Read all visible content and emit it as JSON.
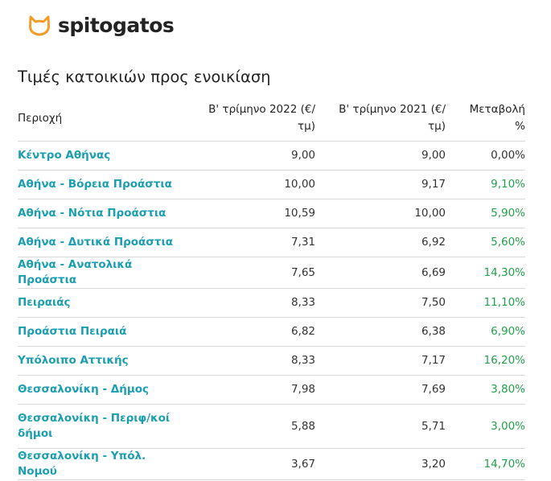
{
  "brand": {
    "name": "spitogatos",
    "icon": "cat-logo-icon",
    "icon_color": "#f39c28"
  },
  "page_title": "Τιμές κατοικιών προς ενοικίαση",
  "table": {
    "headers": {
      "area": "Περιοχή",
      "q2_2022_line1": "Β' τρίμηνο 2022 (€/",
      "q2_2022_line2": "τμ)",
      "q2_2021_line1": "Β' τρίμηνο 2021 (€/",
      "q2_2021_line2": "τμ)",
      "change_line1": "Μεταβολή",
      "change_line2": "%"
    },
    "rows": [
      {
        "area": "Κέντρο Αθήνας",
        "q2_2022": "9,00",
        "q2_2021": "9,00",
        "change": "0,00%"
      },
      {
        "area": "Αθήνα - Βόρεια Προάστια",
        "q2_2022": "10,00",
        "q2_2021": "9,17",
        "change": "9,10%"
      },
      {
        "area": "Αθήνα - Νότια Προάστια",
        "q2_2022": "10,59",
        "q2_2021": "10,00",
        "change": "5,90%"
      },
      {
        "area": "Αθήνα - Δυτικά Προάστια",
        "q2_2022": "7,31",
        "q2_2021": "6,92",
        "change": "5,60%"
      },
      {
        "area": "Αθήνα - Ανατολικά Προάστια",
        "q2_2022": "7,65",
        "q2_2021": "6,69",
        "change": "14,30%"
      },
      {
        "area": "Πειραιάς",
        "q2_2022": "8,33",
        "q2_2021": "7,50",
        "change": "11,10%"
      },
      {
        "area": "Προάστια Πειραιά",
        "q2_2022": "6,82",
        "q2_2021": "6,38",
        "change": "6,90%"
      },
      {
        "area": "Υπόλοιπο Αττικής",
        "q2_2022": "8,33",
        "q2_2021": "7,17",
        "change": "16,20%"
      },
      {
        "area": "Θεσσαλονίκη - Δήμος",
        "q2_2022": "7,98",
        "q2_2021": "7,69",
        "change": "3,80%"
      },
      {
        "area": "Θεσσαλονίκη - Περιφ/κοί δήμοι",
        "q2_2022": "5,88",
        "q2_2021": "5,71",
        "change": "3,00%"
      },
      {
        "area": "Θεσσαλονίκη - Υπόλ. Νομού",
        "q2_2022": "3,67",
        "q2_2021": "3,20",
        "change": "14,70%"
      }
    ]
  },
  "colors": {
    "link": "#1b9fb0",
    "positive_change": "#23a04b",
    "zero_change": "#333333"
  }
}
